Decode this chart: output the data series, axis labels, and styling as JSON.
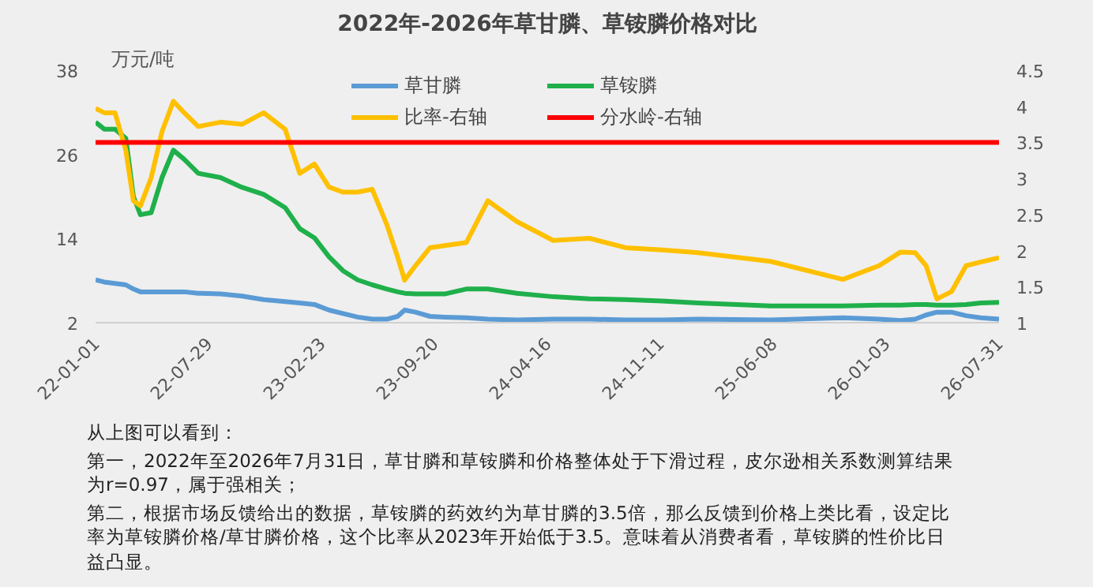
{
  "chart_data": {
    "type": "line",
    "title": "2022年-2026年草甘膦、草铵膦价格对比",
    "ylabel": "万元/吨",
    "x": [
      "2022-01-01",
      "2022-01-17",
      "2022-02-06",
      "2022-02-26",
      "2022-03-12",
      "2022-03-25",
      "2022-04-14",
      "2022-05-04",
      "2022-05-25",
      "2022-06-14",
      "2022-07-10",
      "2022-08-20",
      "2022-09-29",
      "2022-11-08",
      "2022-12-18",
      "2023-01-14",
      "2023-02-10",
      "2023-03-09",
      "2023-04-04",
      "2023-05-01",
      "2023-05-28",
      "2023-06-24",
      "2023-07-14",
      "2023-07-27",
      "2023-08-16",
      "2023-09-12",
      "2023-10-09",
      "2023-11-18",
      "2023-12-28",
      "2024-02-20",
      "2024-04-27",
      "2024-07-03",
      "2024-09-08",
      "2024-11-14",
      "2025-01-20",
      "2025-06-03",
      "2025-10-15",
      "2025-12-21",
      "2026-01-30",
      "2026-02-26",
      "2026-03-18",
      "2026-04-07",
      "2026-05-04",
      "2026-05-31",
      "2026-06-27",
      "2026-07-31"
    ],
    "series": [
      {
        "name": "草甘膦",
        "color": "#5b9bd5",
        "values": [
          8.1,
          7.8,
          7.6,
          7.4,
          6.8,
          6.4,
          6.4,
          6.4,
          6.4,
          6.4,
          6.2,
          6.1,
          5.8,
          5.3,
          5.0,
          4.8,
          4.6,
          3.8,
          3.3,
          2.8,
          2.5,
          2.5,
          2.9,
          3.8,
          3.5,
          2.9,
          2.8,
          2.7,
          2.5,
          2.4,
          2.5,
          2.5,
          2.4,
          2.4,
          2.5,
          2.4,
          2.7,
          2.5,
          2.3,
          2.5,
          3.1,
          3.5,
          3.5,
          3.0,
          2.7,
          2.5
        ]
      },
      {
        "name": "草铵膦",
        "color": "#1fb04b",
        "values": [
          30.6,
          29.6,
          29.6,
          28.3,
          20.0,
          17.4,
          17.7,
          22.7,
          26.6,
          25.3,
          23.3,
          22.7,
          21.3,
          20.3,
          18.4,
          15.4,
          14.1,
          11.4,
          9.4,
          8.1,
          7.4,
          6.8,
          6.4,
          6.2,
          6.1,
          6.1,
          6.1,
          6.8,
          6.8,
          6.2,
          5.7,
          5.4,
          5.3,
          5.1,
          4.8,
          4.4,
          4.4,
          4.5,
          4.5,
          4.6,
          4.6,
          4.5,
          4.5,
          4.6,
          4.8,
          4.9
        ]
      },
      {
        "name": "比率-右轴",
        "color": "#ffc000",
        "axis": "y2",
        "values": [
          3.97,
          3.91,
          3.91,
          3.39,
          2.69,
          2.62,
          3.01,
          3.65,
          4.07,
          3.91,
          3.72,
          3.78,
          3.75,
          3.91,
          3.68,
          3.07,
          3.2,
          2.88,
          2.81,
          2.81,
          2.85,
          2.36,
          1.91,
          1.59,
          1.79,
          2.04,
          2.07,
          2.11,
          2.69,
          2.4,
          2.14,
          2.17,
          2.04,
          2.01,
          1.97,
          1.85,
          1.6,
          1.79,
          1.98,
          1.97,
          1.79,
          1.33,
          1.43,
          1.79,
          1.84,
          1.9
        ]
      },
      {
        "name": "分水岭-右轴",
        "color": "#ff0000",
        "axis": "y2",
        "x": [
          "2022-01-01",
          "2026-07-31"
        ],
        "values": [
          3.5,
          3.5
        ]
      }
    ],
    "xlim": [
      "2022-01-01",
      "2026-07-31"
    ],
    "xticks": [
      {
        "value": "2022-01-01",
        "label": "22-01-01"
      },
      {
        "value": "2022-07-29",
        "label": "22-07-29"
      },
      {
        "value": "2023-02-23",
        "label": "23-02-23"
      },
      {
        "value": "2023-09-20",
        "label": "23-09-20"
      },
      {
        "value": "2024-04-16",
        "label": "24-04-16"
      },
      {
        "value": "2024-11-11",
        "label": "24-11-11"
      },
      {
        "value": "2025-06-08",
        "label": "25-06-08"
      },
      {
        "value": "2026-01-03",
        "label": "26-01-03"
      },
      {
        "value": "2026-07-31",
        "label": "26-07-31"
      }
    ],
    "ylim": [
      2,
      38
    ],
    "yticks": [
      2,
      14,
      26,
      38
    ],
    "y2lim": [
      1,
      4.5
    ],
    "y2ticks": [
      1,
      1.5,
      2,
      2.5,
      3,
      3.5,
      4,
      4.5
    ],
    "legend": "top",
    "grid": false,
    "marker": "none",
    "line_style": "solid",
    "annotations": [
      "从上图可以看到：",
      "第一，2022年至2026年7月31日，草甘膦和草铵膦和价格整体处于下滑过程，皮尔逊相关系数测算结果为r=0.97，属于强相关；",
      "第二，根据市场反馈给出的数据，草铵膦的药效约为草甘膦的3.5倍，那么反馈到价格上类比看，设定比率为草铵膦价格/草甘膦价格，这个比率从2023年开始低于3.5。意味着从消费者看，草铵膦的性价比日益凸显。"
    ]
  }
}
